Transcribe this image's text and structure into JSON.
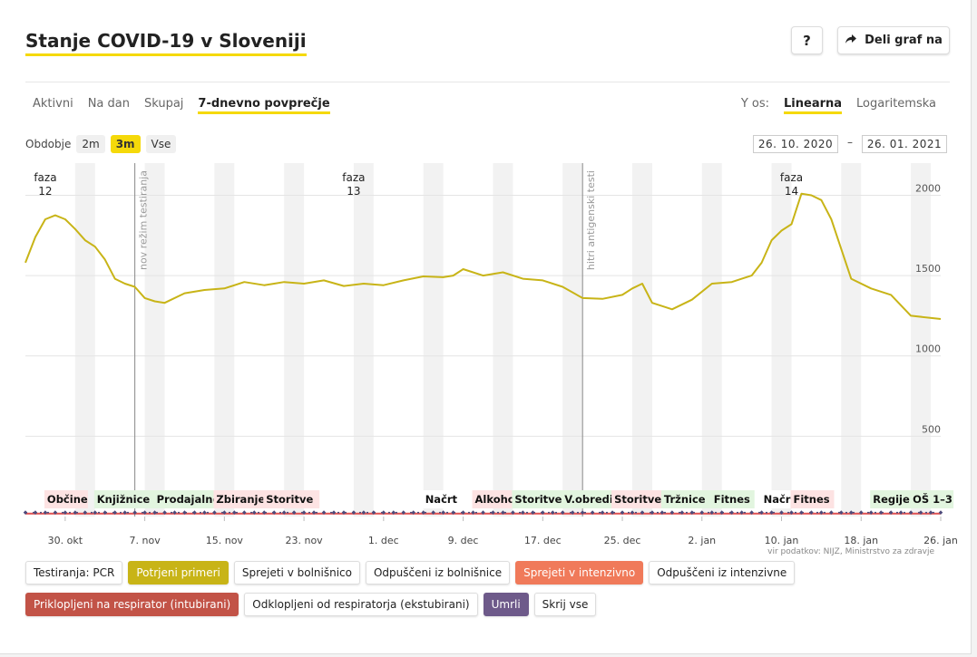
{
  "header": {
    "title": "Stanje COVID-19 v Sloveniji",
    "help_label": "?",
    "share_label": "Deli graf na"
  },
  "tabs": [
    {
      "label": "Aktivni",
      "active": false
    },
    {
      "label": "Na dan",
      "active": false
    },
    {
      "label": "Skupaj",
      "active": false
    },
    {
      "label": "7-dnevno povprečje",
      "active": true
    }
  ],
  "yaxis_selector": {
    "label": "Y os:",
    "options": [
      {
        "label": "Linearna",
        "active": true
      },
      {
        "label": "Logaritemska",
        "active": false
      }
    ]
  },
  "period": {
    "label": "Obdobje",
    "options": [
      {
        "label": "2m",
        "active": false
      },
      {
        "label": "3m",
        "active": true
      },
      {
        "label": "Vse",
        "active": false
      }
    ],
    "date_from": "26. 10. 2020",
    "date_sep": "–",
    "date_to": "26. 01. 2021"
  },
  "source": "vir podatkov: NIJZ, Ministrstvo za zdravje",
  "colors": {
    "accent": "#f5d90a",
    "line": "#c8b417",
    "red": "#e05050",
    "navy": "#4c4a7a"
  },
  "chart_data": {
    "type": "line",
    "title": "",
    "ylim": [
      0,
      2200
    ],
    "yticks": [
      500,
      1000,
      1500,
      2000
    ],
    "xlim": [
      "2020-10-26",
      "2021-01-26"
    ],
    "xticks": [
      {
        "date": "2020-10-30",
        "label": "30. okt"
      },
      {
        "date": "2020-11-07",
        "label": "7. nov"
      },
      {
        "date": "2020-11-15",
        "label": "15. nov"
      },
      {
        "date": "2020-11-23",
        "label": "23. nov"
      },
      {
        "date": "2020-12-01",
        "label": "1. dec"
      },
      {
        "date": "2020-12-09",
        "label": "9. dec"
      },
      {
        "date": "2020-12-17",
        "label": "17. dec"
      },
      {
        "date": "2020-12-25",
        "label": "25. dec"
      },
      {
        "date": "2021-01-02",
        "label": "2. jan"
      },
      {
        "date": "2021-01-10",
        "label": "10. jan"
      },
      {
        "date": "2021-01-18",
        "label": "18. jan"
      },
      {
        "date": "2021-01-26",
        "label": "26. jan"
      }
    ],
    "grid": true,
    "series": [
      {
        "name": "Potrjeni primeri",
        "color": "#c8b417",
        "x": [
          "2020-10-26",
          "2020-10-27",
          "2020-10-28",
          "2020-10-29",
          "2020-10-30",
          "2020-10-31",
          "2020-11-01",
          "2020-11-02",
          "2020-11-03",
          "2020-11-04",
          "2020-11-05",
          "2020-11-06",
          "2020-11-07",
          "2020-11-08",
          "2020-11-09",
          "2020-11-11",
          "2020-11-13",
          "2020-11-15",
          "2020-11-17",
          "2020-11-19",
          "2020-11-20",
          "2020-11-21",
          "2020-11-23",
          "2020-11-25",
          "2020-11-27",
          "2020-11-29",
          "2020-12-01",
          "2020-12-03",
          "2020-12-05",
          "2020-12-07",
          "2020-12-08",
          "2020-12-09",
          "2020-12-11",
          "2020-12-13",
          "2020-12-15",
          "2020-12-17",
          "2020-12-19",
          "2020-12-21",
          "2020-12-23",
          "2020-12-25",
          "2020-12-26",
          "2020-12-27",
          "2020-12-28",
          "2020-12-30",
          "2021-01-01",
          "2021-01-03",
          "2021-01-05",
          "2021-01-06",
          "2021-01-07",
          "2021-01-08",
          "2021-01-09",
          "2021-01-10",
          "2021-01-11",
          "2021-01-12",
          "2021-01-13",
          "2021-01-14",
          "2021-01-15",
          "2021-01-17",
          "2021-01-19",
          "2021-01-21",
          "2021-01-23",
          "2021-01-26"
        ],
        "values": [
          1580,
          1740,
          1850,
          1875,
          1850,
          1790,
          1720,
          1680,
          1600,
          1480,
          1450,
          1430,
          1360,
          1340,
          1330,
          1390,
          1410,
          1420,
          1460,
          1440,
          1450,
          1460,
          1450,
          1470,
          1435,
          1450,
          1440,
          1470,
          1495,
          1490,
          1500,
          1540,
          1500,
          1520,
          1480,
          1470,
          1430,
          1360,
          1355,
          1380,
          1420,
          1450,
          1330,
          1290,
          1350,
          1450,
          1460,
          1480,
          1500,
          1580,
          1720,
          1780,
          1820,
          2010,
          2000,
          1970,
          1850,
          1480,
          1420,
          1380,
          1250,
          1230
        ]
      },
      {
        "name": "Umrli",
        "color": "#4c4a7a",
        "constant": 25
      },
      {
        "name": "Priklopljeni na respirator (intubirani)",
        "color": "#e05050",
        "constant": 18
      }
    ],
    "phases": [
      {
        "label": "faza",
        "number": "12",
        "date": "2020-10-28"
      },
      {
        "label": "faza",
        "number": "13",
        "date": "2020-11-28"
      },
      {
        "label": "faza",
        "number": "14",
        "date": "2021-01-11"
      }
    ],
    "annotations": [
      {
        "label": "nov režim testiranja",
        "date": "2020-11-06"
      },
      {
        "label": "hitri antigenski testi",
        "date": "2020-12-21"
      }
    ],
    "weekends": [
      "2020-10-31",
      "2020-11-07",
      "2020-11-14",
      "2020-11-21",
      "2020-11-28",
      "2020-12-05",
      "2020-12-12",
      "2020-12-19",
      "2020-12-26",
      "2021-01-02",
      "2021-01-09",
      "2021-01-16",
      "2021-01-23"
    ],
    "events": [
      {
        "label": "Občine",
        "date": "2020-10-28",
        "color": "#fde3e3"
      },
      {
        "label": "Knjižnice",
        "date": "2020-11-02",
        "color": "#e2f5df"
      },
      {
        "label": "Prodajalne",
        "date": "2020-11-08",
        "color": "#e2f5df"
      },
      {
        "label": "Zbiranje",
        "date": "2020-11-14",
        "color": "#fde3e3"
      },
      {
        "label": "Storitve",
        "date": "2020-11-19",
        "color": "#fde3e3"
      },
      {
        "label": "Načrt",
        "date": "2020-12-05",
        "color": "#ffffff"
      },
      {
        "label": "Alkohol",
        "date": "2020-12-10",
        "color": "#fde3e3"
      },
      {
        "label": "Storitve",
        "date": "2020-12-14",
        "color": "#e2f5df"
      },
      {
        "label": "V.obredi",
        "date": "2020-12-19",
        "color": "#e2f5df"
      },
      {
        "label": "Storitve",
        "date": "2020-12-24",
        "color": "#fde3e3"
      },
      {
        "label": "Tržnice",
        "date": "2020-12-29",
        "color": "#e2f5df"
      },
      {
        "label": "Fitnes",
        "date": "2021-01-03",
        "color": "#e2f5df"
      },
      {
        "label": "Načrt",
        "date": "2021-01-08",
        "color": "#ffffff"
      },
      {
        "label": "Fitnes",
        "date": "2021-01-11",
        "color": "#fde3e3"
      },
      {
        "label": "Regije",
        "date": "2021-01-19",
        "color": "#e2f5df"
      },
      {
        "label": "OŠ 1–3",
        "date": "2021-01-23",
        "color": "#e2f5df"
      }
    ]
  },
  "legend": [
    {
      "label": "Testiranja: PCR",
      "active": false,
      "color": ""
    },
    {
      "label": "Potrjeni primeri",
      "active": true,
      "color": "#c8b417"
    },
    {
      "label": "Sprejeti v bolnišnico",
      "active": false,
      "color": ""
    },
    {
      "label": "Odpuščeni iz bolnišnice",
      "active": false,
      "color": ""
    },
    {
      "label": "Sprejeti v intenzivno",
      "active": true,
      "color": "#f07a5a"
    },
    {
      "label": "Odpuščeni iz intenzivne",
      "active": false,
      "color": ""
    },
    {
      "label": "Priklopljeni na respirator (intubirani)",
      "active": true,
      "color": "#c25347"
    },
    {
      "label": "Odklopljeni od respiratorja (ekstubirani)",
      "active": false,
      "color": ""
    },
    {
      "label": "Umrli",
      "active": true,
      "color": "#6e5a8a"
    },
    {
      "label": "Skrij vse",
      "active": false,
      "color": ""
    }
  ]
}
